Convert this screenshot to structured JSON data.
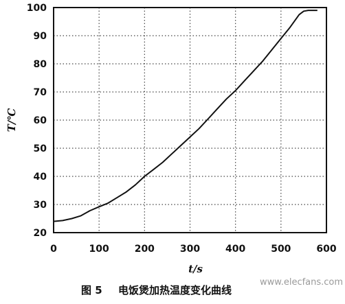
{
  "chart_data": {
    "type": "line",
    "title": "",
    "xlabel": "t/s",
    "ylabel": "T/℃",
    "xlim": [
      0,
      600
    ],
    "ylim": [
      20,
      100
    ],
    "xticks": [
      0,
      100,
      200,
      300,
      400,
      500,
      600
    ],
    "yticks": [
      20,
      30,
      40,
      50,
      60,
      70,
      80,
      90,
      100
    ],
    "grid": true,
    "grid_style": "dotted",
    "series": [
      {
        "color": "#111111",
        "x": [
          0,
          20,
          40,
          60,
          80,
          100,
          120,
          140,
          160,
          180,
          200,
          220,
          240,
          260,
          280,
          300,
          320,
          340,
          360,
          380,
          400,
          420,
          440,
          460,
          480,
          500,
          520,
          540,
          550,
          560,
          570,
          580
        ],
        "y": [
          24,
          24.3,
          25,
          26,
          27.8,
          29.2,
          30.5,
          32.5,
          34.5,
          37,
          40,
          42.5,
          45,
          48,
          51,
          54,
          57,
          60.5,
          64,
          67.5,
          70.5,
          74,
          77.5,
          81,
          85,
          89,
          93,
          97.5,
          98.7,
          99,
          99,
          99
        ]
      }
    ]
  },
  "caption": {
    "figure_no": "图 5",
    "text": "电饭煲加热温度变化曲线"
  },
  "watermark": "www.elecfans.com"
}
